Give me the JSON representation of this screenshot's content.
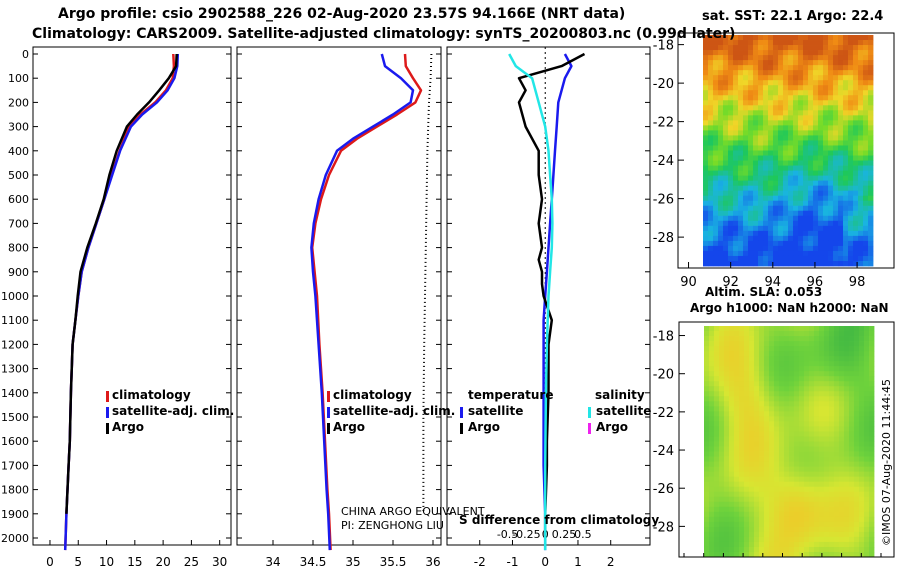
{
  "header": {
    "line1": "Argo profile: csio 2902588_226 02-Aug-2020 23.57S 94.166E (NRT data)",
    "line2": "Climatology: CARS2009. Satellite-adjusted climatology: synTS_20200803.nc (0.99d later)"
  },
  "colors": {
    "climatology": "#dd1a1a",
    "satellite": "#1a1aee",
    "argo": "#000000",
    "satellite_salinity": "#22e6e6",
    "argo_salinity": "#ee22ee"
  },
  "chart_data": [
    {
      "type": "line",
      "xticks": [
        "0",
        "5",
        "10",
        "15",
        "20",
        "25",
        "30"
      ],
      "xlim": [
        -3,
        32
      ],
      "yticks": [
        "0",
        "100",
        "200",
        "300",
        "400",
        "500",
        "600",
        "700",
        "800",
        "900",
        "1000",
        "1100",
        "1200",
        "1300",
        "1400",
        "1500",
        "1600",
        "1700",
        "1800",
        "1900",
        "2000"
      ],
      "ylim": [
        0,
        2050
      ],
      "legend": [
        "climatology",
        "satellite-adj. clim.",
        "Argo"
      ],
      "series": [
        {
          "name": "climatology",
          "x": [
            21.8,
            21.9,
            21.7,
            20.5,
            18.6,
            16.0,
            14.0,
            12.3,
            10.9,
            9.6,
            8.2,
            6.8,
            5.6,
            5.0,
            4.5,
            4.0,
            3.7,
            3.5,
            3.3,
            3.1,
            2.9,
            2.7
          ],
          "y": [
            0,
            50,
            100,
            150,
            200,
            250,
            300,
            400,
            500,
            600,
            700,
            800,
            900,
            1000,
            1100,
            1200,
            1400,
            1600,
            1700,
            1800,
            1900,
            2050
          ]
        },
        {
          "name": "satellite-adj. clim.",
          "x": [
            22.6,
            22.5,
            22.0,
            20.8,
            18.9,
            16.3,
            14.3,
            12.4,
            11.0,
            9.6,
            8.2,
            6.8,
            5.6,
            5.0,
            4.5,
            4.0,
            3.7,
            3.5,
            3.3,
            3.1,
            2.9,
            2.7
          ],
          "y": [
            0,
            50,
            100,
            150,
            200,
            250,
            300,
            400,
            500,
            600,
            700,
            800,
            900,
            1000,
            1100,
            1200,
            1400,
            1600,
            1700,
            1800,
            1900,
            2050
          ]
        },
        {
          "name": "Argo",
          "x": [
            22.4,
            22.3,
            21.0,
            19.3,
            17.5,
            15.4,
            13.6,
            11.8,
            10.5,
            9.5,
            8.1,
            6.6,
            5.4,
            4.9,
            4.5,
            4.0,
            3.7,
            3.5,
            3.3,
            3.1,
            2.9
          ],
          "y": [
            0,
            50,
            100,
            150,
            200,
            250,
            300,
            400,
            500,
            600,
            700,
            800,
            900,
            1000,
            1100,
            1200,
            1400,
            1600,
            1700,
            1800,
            1900
          ]
        }
      ]
    },
    {
      "type": "line",
      "xticks": [
        "34",
        "34.5",
        "35",
        "35.5",
        "36"
      ],
      "xlim": [
        33.55,
        36.1
      ],
      "yticks": [
        "0",
        "100",
        "200",
        "300",
        "400",
        "500",
        "600",
        "700",
        "800",
        "900",
        "1000",
        "1100",
        "1200",
        "1300",
        "1400",
        "1500",
        "1600",
        "1700",
        "1800",
        "1900",
        "2000"
      ],
      "ylim": [
        0,
        2050
      ],
      "legend": [
        "climatology",
        "satellite-adj. clim.",
        "Argo"
      ],
      "series": [
        {
          "name": "climatology",
          "x": [
            35.65,
            35.66,
            35.75,
            35.85,
            35.78,
            35.55,
            35.3,
            35.05,
            34.85,
            34.7,
            34.6,
            34.53,
            34.49,
            34.52,
            34.55,
            34.58,
            34.62,
            34.65,
            34.68,
            34.7,
            34.72
          ],
          "y": [
            0,
            50,
            100,
            150,
            200,
            250,
            300,
            350,
            400,
            500,
            600,
            700,
            800,
            900,
            1000,
            1200,
            1400,
            1600,
            1800,
            1900,
            2050
          ]
        },
        {
          "name": "satellite-adj. clim.",
          "x": [
            35.36,
            35.4,
            35.6,
            35.75,
            35.72,
            35.5,
            35.25,
            35.0,
            34.8,
            34.66,
            34.57,
            34.51,
            34.48,
            34.5,
            34.53,
            34.57,
            34.61,
            34.64,
            34.67,
            34.69,
            34.71
          ],
          "y": [
            0,
            50,
            100,
            150,
            200,
            250,
            300,
            350,
            400,
            500,
            600,
            700,
            800,
            900,
            1000,
            1200,
            1400,
            1600,
            1800,
            1900,
            2050
          ]
        }
      ],
      "dotted_series": {
        "x": [
          35.98,
          35.97,
          35.95,
          35.93,
          35.92,
          35.91,
          35.9,
          35.89,
          35.88,
          35.88,
          35.88
        ],
        "y": [
          0,
          100,
          200,
          400,
          600,
          800,
          1000,
          1200,
          1500,
          1800,
          1900
        ]
      }
    },
    {
      "type": "line",
      "title": "S difference from climatology",
      "xticks": [
        "-0.5",
        "-0.25",
        "0",
        "0.25",
        "0.5"
      ],
      "xticks2": [
        "-2",
        "-1",
        "0",
        "1",
        "2"
      ],
      "xlim": [
        -3,
        3.2
      ],
      "yticks": [
        "0",
        "100",
        "200",
        "300",
        "400",
        "500",
        "600",
        "700",
        "800",
        "900",
        "1000",
        "1100",
        "1200",
        "1300",
        "1400",
        "1500",
        "1600",
        "1700",
        "1800",
        "1900",
        "2000"
      ],
      "ylim": [
        0,
        2050
      ],
      "legend_temperature": {
        "heading": "temperature",
        "items": [
          "satellite",
          "Argo"
        ]
      },
      "legend_salinity": {
        "heading": "salinity",
        "items": [
          "satellite",
          "Argo"
        ]
      },
      "series": [
        {
          "name": "temperature satellite",
          "x": [
            0.6,
            0.8,
            0.6,
            0.4,
            0.35,
            0.3,
            0.25,
            0.2,
            0.15,
            0.1,
            0.05,
            0.0,
            -0.05,
            -0.05,
            -0.05,
            -0.05,
            -0.05,
            0.0,
            0.0
          ],
          "y": [
            0,
            50,
            100,
            200,
            300,
            400,
            500,
            600,
            700,
            800,
            900,
            1000,
            1100,
            1200,
            1400,
            1600,
            1700,
            1900,
            2050
          ]
        },
        {
          "name": "temperature Argo",
          "x": [
            1.2,
            0.5,
            -0.8,
            -0.6,
            -0.8,
            -0.6,
            -0.2,
            -0.2,
            -0.1,
            -0.2,
            -0.1,
            -0.2,
            -0.1,
            -0.1,
            -0.05,
            0.2,
            0.1,
            0.1,
            0.05,
            0.05,
            0.0,
            0.0
          ],
          "y": [
            0,
            50,
            100,
            150,
            200,
            300,
            400,
            500,
            600,
            700,
            800,
            850,
            900,
            950,
            1000,
            1100,
            1200,
            1400,
            1600,
            1700,
            1900,
            2000
          ]
        },
        {
          "name": "salinity satellite",
          "x": [
            -1.1,
            -0.9,
            -0.4,
            -0.2,
            0.0,
            0.1,
            0.15,
            0.2,
            0.22,
            0.2,
            0.15,
            0.1,
            0.05,
            0.02,
            0.0,
            0.0
          ],
          "y": [
            0,
            50,
            100,
            200,
            300,
            400,
            500,
            600,
            700,
            800,
            900,
            1000,
            1200,
            1400,
            1700,
            2050
          ]
        }
      ]
    }
  ],
  "maps": [
    {
      "type": "heatmap",
      "title": "sat. SST: 22.1 Argo: 22.4",
      "xticks": [
        "90",
        "92",
        "94",
        "96",
        "98"
      ],
      "yticks": [
        "-18",
        "-20",
        "-22",
        "-24",
        "-26",
        "-28"
      ],
      "xlim": [
        89.5,
        99.8
      ],
      "ylim": [
        -29.5,
        -17.5
      ]
    },
    {
      "type": "heatmap",
      "title": "Altim. SLA: 0.053",
      "subtitle": "Argo h1000: NaN h2000: NaN",
      "yticks": [
        "-18",
        "-20",
        "-22",
        "-24",
        "-26",
        "-28"
      ],
      "ylim": [
        -29.5,
        -17.5
      ]
    }
  ],
  "notes": {
    "equivalent": "CHINA ARGO EQUIVALENT",
    "pi": "PI: ZENGHONG LIU"
  },
  "footer": "©IMOS 07-Aug-2020 11:44:45"
}
